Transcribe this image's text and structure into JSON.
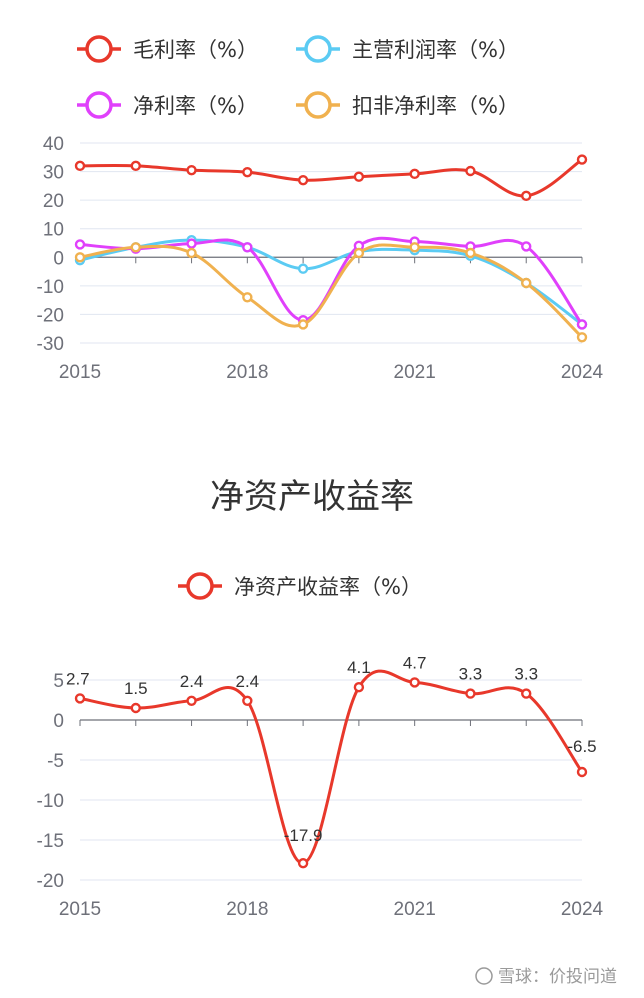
{
  "watermark": "雪球：价投问道",
  "colors": {
    "red": "#e8382b",
    "cyan": "#5bcbf3",
    "magenta": "#e040fb",
    "orange": "#f0b14f",
    "axis": "#6e7079",
    "grid": "#e0e6f1"
  },
  "chart_data": [
    {
      "type": "line",
      "title": "",
      "x": [
        2015,
        2016,
        2017,
        2018,
        2019,
        2020,
        2021,
        2022,
        2023,
        2024
      ],
      "x_tick_labels": [
        "2015",
        "2018",
        "2021",
        "2024"
      ],
      "ylim": [
        -30,
        40
      ],
      "y_ticks": [
        40,
        30,
        20,
        10,
        0,
        -10,
        -20,
        -30
      ],
      "smooth": true,
      "grid": true,
      "legend_position": "top",
      "series": [
        {
          "name": "毛利率（%）",
          "color": "#e8382b",
          "values": [
            32,
            32,
            30.5,
            29.8,
            27,
            28.2,
            29.2,
            30.2,
            21.5,
            34.2
          ]
        },
        {
          "name": "主营利润率（%）",
          "color": "#5bcbf3",
          "values": [
            -1,
            3.5,
            6,
            3.5,
            -4,
            2,
            2.5,
            0.5,
            -9,
            -23.5
          ]
        },
        {
          "name": "净利率（%）",
          "color": "#e040fb",
          "values": [
            4.5,
            3,
            4.8,
            3.5,
            -22,
            4,
            5.5,
            3.8,
            3.8,
            -23.5
          ]
        },
        {
          "name": "扣非净利率（%）",
          "color": "#f0b14f",
          "values": [
            0,
            3.5,
            1.5,
            -14,
            -23.5,
            1.5,
            3.5,
            1.5,
            -9,
            -28
          ]
        }
      ]
    },
    {
      "type": "line",
      "title": "净资产收益率",
      "x": [
        2015,
        2016,
        2017,
        2018,
        2019,
        2020,
        2021,
        2022,
        2023,
        2024
      ],
      "x_tick_labels": [
        "2015",
        "2018",
        "2021",
        "2024"
      ],
      "ylim": [
        -20,
        5
      ],
      "y_ticks": [
        5,
        0,
        -5,
        -10,
        -15,
        -20
      ],
      "smooth": true,
      "grid": true,
      "legend_position": "top",
      "series": [
        {
          "name": "净资产收益率（%）",
          "color": "#e8382b",
          "values": [
            2.7,
            1.5,
            2.4,
            2.4,
            -17.9,
            4.1,
            4.7,
            3.3,
            3.3,
            -6.5
          ],
          "labels": [
            "2.7",
            "1.5",
            "2.4",
            "2.4",
            "-17.9",
            "4.1",
            "4.7",
            "3.3",
            "3.3",
            "-6.5"
          ]
        }
      ]
    }
  ]
}
